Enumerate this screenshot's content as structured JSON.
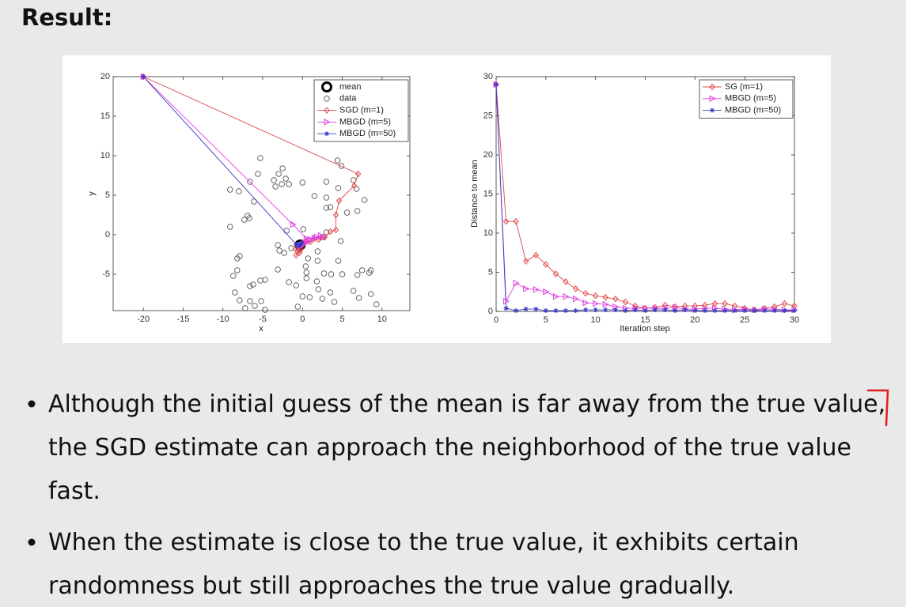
{
  "heading": "Result:",
  "chart_data": [
    {
      "type": "scatter",
      "xlabel": "x",
      "ylabel": "y",
      "xlim": [
        -23.8,
        13.5
      ],
      "ylim": [
        -9.6,
        20
      ],
      "xticks": [
        -20,
        -15,
        -10,
        -5,
        0,
        5,
        10
      ],
      "yticks": [
        -5,
        0,
        5,
        10,
        15,
        20
      ],
      "legend": "upper right",
      "series": [
        {
          "name": "mean",
          "color": "#000000",
          "marker": "bold-circle",
          "line": false,
          "x": [
            -0.3
          ],
          "y": [
            -1.3
          ]
        },
        {
          "name": "data",
          "color": "#555555",
          "marker": "circle",
          "line": false,
          "x": [
            -5.3,
            -2.5,
            -5.6,
            -3,
            -3.6,
            -2.1,
            -2.6,
            -3.4,
            -1.7,
            -6.6,
            0,
            4.4,
            4.9,
            3,
            1.5,
            4.5,
            3,
            3.5,
            3,
            6.8,
            7.8,
            5.6,
            6.9,
            6.4,
            -9.1,
            -8,
            -6.1,
            -6.9,
            -6.7,
            -7.3,
            -9.1,
            -3.1,
            -2.9,
            -1.4,
            -2.3,
            -2,
            0.1,
            2.6,
            4.8,
            3,
            1.9,
            0.7,
            1.9,
            4.5,
            -7.9,
            -8.2,
            -8.2,
            -8.7,
            -3.1,
            -5.3,
            -6.2,
            -6.6,
            -4.7,
            -8.5,
            -7.9,
            -6.6,
            -6,
            -5.2,
            -7.2,
            -4.7,
            -1.7,
            -0.8,
            0.4,
            0.5,
            0.5,
            0,
            0.9,
            -0.6,
            1.8,
            2,
            2.5,
            3.5,
            2.7,
            5,
            3.6,
            4,
            6.9,
            7.5,
            8.6,
            8.4,
            6.4,
            7.1,
            8.6,
            9.3
          ],
          "y": [
            9.7,
            8.4,
            7.7,
            7.7,
            6.9,
            7.1,
            6.4,
            6.1,
            6.4,
            6.7,
            6.6,
            9.4,
            8.7,
            6.7,
            4.9,
            5.9,
            3.4,
            3.5,
            4.7,
            5.8,
            4.4,
            2.8,
            3,
            6.9,
            5.7,
            5.5,
            4.2,
            2.4,
            2.1,
            1.9,
            1,
            -1.3,
            -2,
            -1.7,
            -2.3,
            0.5,
            0.7,
            -0.3,
            -0.8,
            0.3,
            -2.1,
            -3,
            -3.3,
            -3.3,
            -2.7,
            -3,
            -4.5,
            -5.2,
            -4.4,
            -5.8,
            -6.3,
            -6.5,
            -5.7,
            -7.3,
            -8.3,
            -8.4,
            -9,
            -8.4,
            -9.3,
            -9.5,
            -6,
            -6.4,
            -4,
            -4.8,
            -5.5,
            -7.8,
            -7.9,
            -9.1,
            -5.9,
            -6.9,
            -8.1,
            -7.3,
            -4.9,
            -5,
            -5,
            -8.5,
            -5.1,
            -4.5,
            -4.5,
            -4.8,
            -7.1,
            -8,
            -7.5,
            -8.8
          ]
        },
        {
          "name": "SGD (m=1)",
          "color": "#e04848",
          "marker": "diamond",
          "line": true,
          "x": [
            -20,
            7,
            6.5,
            4.6,
            4.2,
            4.2,
            3.5,
            2.8,
            2,
            1.5,
            1,
            0.4,
            0,
            -0.2,
            -0.6,
            -0.8,
            -0.4,
            -0.9,
            -0.3
          ],
          "y": [
            20,
            7.7,
            6.2,
            4.3,
            2.5,
            0.6,
            0.4,
            -0.3,
            -0.6,
            -0.5,
            -0.9,
            -0.8,
            -1.3,
            -1.8,
            -2.1,
            -2.6,
            -2.3,
            -1.8,
            -2
          ]
        },
        {
          "name": "MBGD (m=5)",
          "color": "#e040e0",
          "marker": "triangle-right",
          "line": true,
          "x": [
            -20,
            -1.2,
            0.5,
            1.8,
            2.5,
            2.3,
            1.5,
            1,
            0.7,
            0.3,
            0,
            -0.2,
            -0.4
          ],
          "y": [
            20,
            1.3,
            -0.5,
            -0.3,
            -0.4,
            -0.1,
            -0.4,
            -0.6,
            -0.9,
            -1,
            -1.2,
            -1.4,
            -1.5
          ]
        },
        {
          "name": "MBGD (m=50)",
          "color": "#3838c8",
          "marker": "star",
          "line": true,
          "x": [
            -20,
            -0.8,
            -0.4,
            -0.1,
            -0.5,
            -0.2
          ],
          "y": [
            20,
            -1.2,
            -1.4,
            -1,
            -1.3,
            -1.2
          ]
        }
      ]
    },
    {
      "type": "line",
      "xlabel": "Iteration step",
      "ylabel": "Distance to mean",
      "xlim": [
        0,
        30
      ],
      "ylim": [
        0,
        30
      ],
      "xticks": [
        0,
        5,
        10,
        15,
        20,
        25,
        30
      ],
      "yticks": [
        0,
        5,
        10,
        15,
        20,
        25,
        30
      ],
      "legend": "upper right",
      "x": [
        0,
        1,
        2,
        3,
        4,
        5,
        6,
        7,
        8,
        9,
        10,
        11,
        12,
        13,
        14,
        15,
        16,
        17,
        18,
        19,
        20,
        21,
        22,
        23,
        24,
        25,
        26,
        27,
        28,
        29,
        30
      ],
      "series": [
        {
          "name": "SG (m=1)",
          "color": "#e04848",
          "marker": "diamond",
          "line": true,
          "values": [
            29,
            11.5,
            11.5,
            6.4,
            7.2,
            6,
            4.8,
            3.8,
            2.9,
            2.3,
            2,
            1.8,
            1.6,
            1.2,
            0.7,
            0.4,
            0.5,
            0.8,
            0.6,
            0.7,
            0.7,
            0.8,
            1,
            1,
            0.7,
            0.4,
            0.2,
            0.4,
            0.6,
            1,
            0.7
          ]
        },
        {
          "name": "MBGD (m=5)",
          "color": "#e040e0",
          "marker": "triangle-right",
          "line": true,
          "values": [
            29,
            1.3,
            3.6,
            2.9,
            2.8,
            2.5,
            1.9,
            1.9,
            1.6,
            1.1,
            1,
            0.9,
            0.6,
            0.4,
            0.4,
            0.4,
            0.4,
            0.4,
            0.5,
            0.3,
            0.3,
            0.4,
            0.4,
            0.3,
            0.2,
            0.3,
            0.2,
            0.3,
            0.3,
            0.2,
            0.2
          ]
        },
        {
          "name": "MBGD (m=50)",
          "color": "#3838c8",
          "marker": "star",
          "line": true,
          "values": [
            29,
            0.4,
            0.1,
            0.3,
            0.3,
            0.1,
            0.1,
            0.1,
            0.1,
            0.2,
            0.2,
            0.2,
            0.2,
            0.1,
            0.2,
            0.1,
            0.2,
            0.2,
            0.1,
            0.2,
            0.1,
            0.1,
            0.1,
            0.1,
            0.1,
            0.1,
            0.1,
            0.1,
            0.1,
            0.1,
            0.1
          ]
        }
      ]
    }
  ],
  "bullets": [
    [
      "Although the initial guess of the mean is far away from the true value,",
      "the SGD estimate can approach the neighborhood of the true value",
      "fast."
    ],
    [
      "When the estimate is close to the true value, it exhibits certain",
      "randomness but still approaches the true value gradually."
    ]
  ]
}
